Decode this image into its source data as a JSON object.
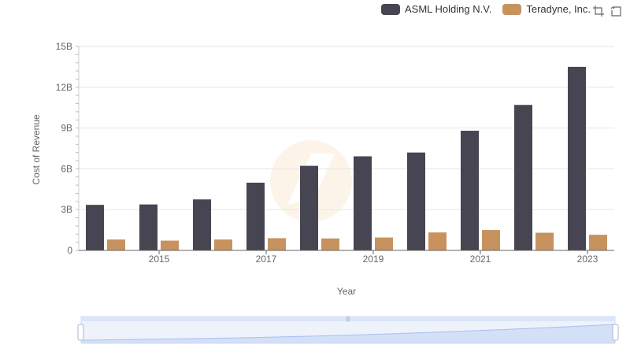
{
  "legend": {
    "items": [
      {
        "label": "ASML Holding N.V.",
        "color": "#474551"
      },
      {
        "label": "Teradyne, Inc.",
        "color": "#c8925e"
      }
    ]
  },
  "toolbar": {
    "zoom_icon": "zoom-icon",
    "reset_icon": "reset-icon"
  },
  "chart_data": {
    "type": "bar",
    "xlabel": "Year",
    "ylabel": "Cost of Revenue",
    "categories": [
      "2014",
      "2015",
      "2016",
      "2017",
      "2018",
      "2019",
      "2020",
      "2021",
      "2022",
      "2023"
    ],
    "x_tick_labels": [
      "2015",
      "2017",
      "2019",
      "2021",
      "2023"
    ],
    "y_ticks": [
      0,
      3,
      6,
      9,
      12,
      15
    ],
    "y_tick_labels": [
      "0",
      "3B",
      "6B",
      "9B",
      "12B",
      "15B"
    ],
    "ylim": [
      0,
      15
    ],
    "unit": "B",
    "series": [
      {
        "name": "ASML Holding N.V.",
        "color": "#474551",
        "values": [
          3.35,
          3.38,
          3.75,
          4.98,
          6.22,
          6.92,
          7.2,
          8.8,
          10.7,
          13.5
        ]
      },
      {
        "name": "Teradyne, Inc.",
        "color": "#c8925e",
        "values": [
          0.8,
          0.72,
          0.8,
          0.9,
          0.88,
          0.95,
          1.32,
          1.5,
          1.3,
          1.15
        ]
      }
    ],
    "grid": true,
    "legend_position": "top-right"
  }
}
